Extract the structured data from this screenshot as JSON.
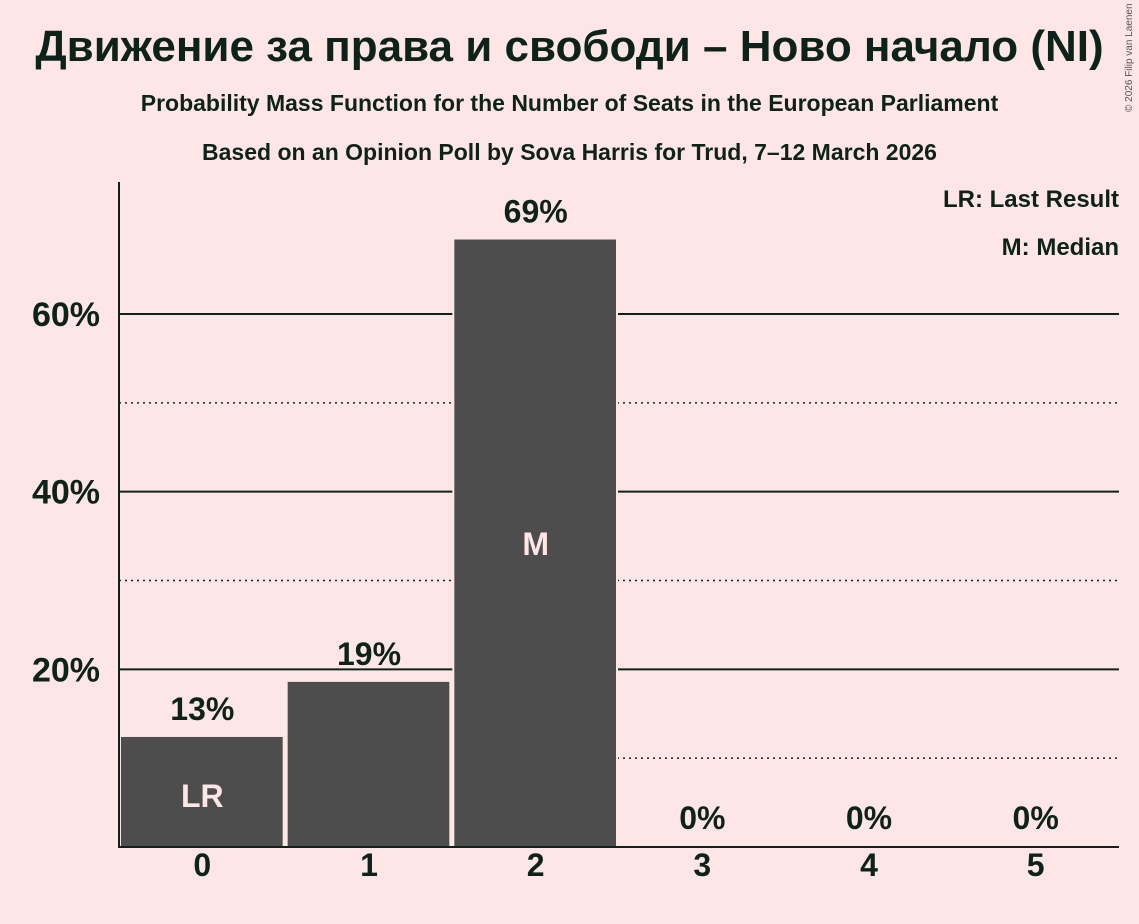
{
  "title": "Движение за права и свободи – Ново начало (NI)",
  "subtitle1": "Probability Mass Function for the Number of Seats in the European Parliament",
  "subtitle2": "Based on an Opinion Poll by Sova Harris for Trud, 7–12 March 2026",
  "copyright": "© 2026 Filip van Laenen",
  "legend": {
    "lr": "LR: Last Result",
    "m": "M: Median"
  },
  "colors": {
    "bar": "#4D4D4D",
    "background": "#FFE6E6",
    "text": "#0D2319",
    "bar_label": "#FFE6E6"
  },
  "chart_data": {
    "type": "bar",
    "title": "Движение за права и свободи – Ново начало (NI)",
    "xlabel": "",
    "ylabel": "",
    "categories": [
      "0",
      "1",
      "2",
      "3",
      "4",
      "5"
    ],
    "values": [
      12.5,
      18.7,
      68.5,
      0,
      0,
      0
    ],
    "value_labels": [
      "13%",
      "19%",
      "69%",
      "0%",
      "0%",
      "0%"
    ],
    "bar_inner_labels": [
      "LR",
      "",
      "M",
      "",
      "",
      ""
    ],
    "ylim": [
      0,
      75
    ],
    "yticks": [
      20,
      40,
      60
    ],
    "ytick_labels": [
      "20%",
      "40%",
      "60%"
    ],
    "minor_gridlines": [
      10,
      30,
      50
    ],
    "legend_position": "top-right"
  }
}
